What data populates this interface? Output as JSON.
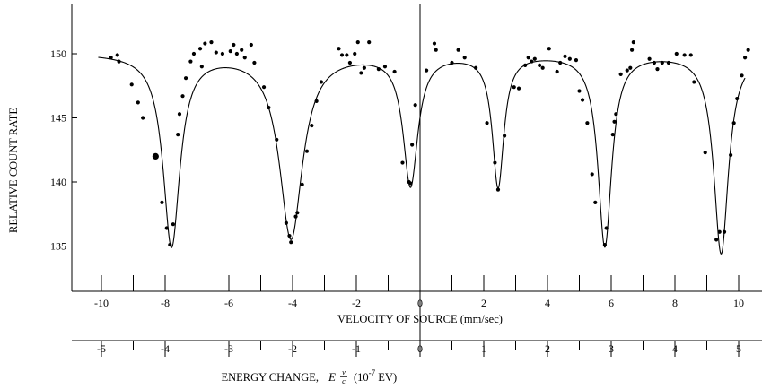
{
  "chart_data": {
    "type": "scatter",
    "title": "",
    "ylabel": "RELATIVE COUNT RATE",
    "xlabel": "VELOCITY OF SOURCE (mm/sec)",
    "xlim": [
      -10.8,
      10.8
    ],
    "ylim": [
      130.5,
      154.5
    ],
    "yticks": [
      "135",
      "140",
      "145",
      "150"
    ],
    "xticks": [
      "-10",
      "-8",
      "-6",
      "-4",
      "-2",
      "0",
      "2",
      "4",
      "6",
      "8",
      "10"
    ],
    "grid": false,
    "energy_axis": {
      "label_prefix": "ENERGY CHANGE,",
      "formula_E": "E",
      "formula_num": "v",
      "formula_den": "c",
      "unit_base": "(10",
      "unit_exp": "-7",
      "unit_suffix": " EV)",
      "ticks": [
        "-5",
        "-4",
        "-3",
        "-2",
        "-1",
        "0",
        "1",
        "2",
        "3",
        "4",
        "5"
      ]
    },
    "series": [
      {
        "kind": "points",
        "values": [
          [
            -9.7,
            149.7
          ],
          [
            -9.5,
            149.9
          ],
          [
            -9.45,
            149.4
          ],
          [
            -9.05,
            147.6
          ],
          [
            -8.85,
            146.2
          ],
          [
            -8.7,
            145.0
          ],
          [
            -8.3,
            142.0
          ],
          [
            -8.1,
            138.4
          ],
          [
            -7.95,
            136.4
          ],
          [
            -7.85,
            135.1
          ],
          [
            -7.75,
            136.7
          ],
          [
            -7.6,
            143.7
          ],
          [
            -7.55,
            145.3
          ],
          [
            -7.45,
            146.7
          ],
          [
            -7.35,
            148.1
          ],
          [
            -7.2,
            149.4
          ],
          [
            -7.1,
            150.0
          ],
          [
            -6.9,
            150.4
          ],
          [
            -6.85,
            149.0
          ],
          [
            -6.75,
            150.8
          ],
          [
            -6.55,
            150.9
          ],
          [
            -6.4,
            150.1
          ],
          [
            -6.2,
            150.0
          ],
          [
            -5.95,
            150.2
          ],
          [
            -5.85,
            150.7
          ],
          [
            -5.75,
            150.0
          ],
          [
            -5.6,
            150.3
          ],
          [
            -5.5,
            149.7
          ],
          [
            -5.3,
            150.7
          ],
          [
            -5.2,
            149.3
          ],
          [
            -4.9,
            147.4
          ],
          [
            -4.75,
            145.8
          ],
          [
            -4.5,
            143.3
          ],
          [
            -4.2,
            136.8
          ],
          [
            -4.1,
            135.8
          ],
          [
            -4.05,
            135.3
          ],
          [
            -3.9,
            137.3
          ],
          [
            -3.85,
            137.6
          ],
          [
            -3.7,
            139.8
          ],
          [
            -3.55,
            142.4
          ],
          [
            -3.4,
            144.4
          ],
          [
            -3.25,
            146.3
          ],
          [
            -3.1,
            147.8
          ],
          [
            -2.55,
            150.4
          ],
          [
            -2.45,
            149.9
          ],
          [
            -2.3,
            149.9
          ],
          [
            -2.2,
            149.3
          ],
          [
            -2.05,
            150.0
          ],
          [
            -1.95,
            150.9
          ],
          [
            -1.85,
            148.5
          ],
          [
            -1.75,
            148.9
          ],
          [
            -1.6,
            150.9
          ],
          [
            -1.3,
            148.8
          ],
          [
            -1.1,
            149.0
          ],
          [
            -0.8,
            148.6
          ],
          [
            -0.55,
            141.5
          ],
          [
            -0.35,
            140.0
          ],
          [
            -0.3,
            139.9
          ],
          [
            -0.25,
            142.9
          ],
          [
            -0.15,
            146.0
          ],
          [
            0.2,
            148.7
          ],
          [
            0.45,
            150.8
          ],
          [
            0.5,
            150.3
          ],
          [
            1.0,
            149.3
          ],
          [
            1.2,
            150.3
          ],
          [
            1.4,
            149.7
          ],
          [
            1.75,
            148.9
          ],
          [
            2.1,
            144.6
          ],
          [
            2.35,
            141.5
          ],
          [
            2.45,
            139.4
          ],
          [
            2.65,
            143.6
          ],
          [
            2.95,
            147.4
          ],
          [
            3.1,
            147.3
          ],
          [
            3.3,
            149.1
          ],
          [
            3.4,
            149.7
          ],
          [
            3.5,
            149.4
          ],
          [
            3.6,
            149.6
          ],
          [
            3.75,
            149.1
          ],
          [
            3.85,
            148.9
          ],
          [
            4.05,
            150.4
          ],
          [
            4.3,
            148.6
          ],
          [
            4.4,
            149.3
          ],
          [
            4.55,
            149.8
          ],
          [
            4.7,
            149.6
          ],
          [
            4.9,
            149.5
          ],
          [
            5.0,
            147.1
          ],
          [
            5.1,
            146.4
          ],
          [
            5.25,
            144.6
          ],
          [
            5.4,
            140.6
          ],
          [
            5.5,
            138.4
          ],
          [
            5.8,
            135.1
          ],
          [
            5.85,
            136.4
          ],
          [
            6.05,
            143.7
          ],
          [
            6.1,
            144.7
          ],
          [
            6.15,
            145.3
          ],
          [
            6.3,
            148.4
          ],
          [
            6.5,
            148.7
          ],
          [
            6.6,
            148.9
          ],
          [
            6.65,
            150.3
          ],
          [
            6.7,
            150.9
          ],
          [
            7.2,
            149.6
          ],
          [
            7.35,
            149.3
          ],
          [
            7.45,
            148.8
          ],
          [
            7.6,
            149.3
          ],
          [
            7.8,
            149.3
          ],
          [
            8.05,
            150.0
          ],
          [
            8.3,
            149.9
          ],
          [
            8.5,
            149.9
          ],
          [
            8.6,
            147.8
          ],
          [
            8.95,
            142.3
          ],
          [
            9.3,
            135.5
          ],
          [
            9.4,
            136.1
          ],
          [
            9.55,
            136.1
          ],
          [
            9.75,
            142.1
          ],
          [
            9.85,
            144.6
          ],
          [
            9.95,
            146.5
          ],
          [
            10.1,
            148.3
          ],
          [
            10.2,
            149.7
          ],
          [
            10.3,
            150.3
          ]
        ]
      },
      {
        "kind": "fit_curve",
        "baseline": 150.1,
        "dips": [
          {
            "center": -7.8,
            "depth": 15.0,
            "width": 0.32
          },
          {
            "center": -4.05,
            "depth": 14.4,
            "width": 0.44
          },
          {
            "center": -0.3,
            "depth": 10.2,
            "width": 0.28
          },
          {
            "center": 2.45,
            "depth": 10.3,
            "width": 0.22
          },
          {
            "center": 5.8,
            "depth": 15.0,
            "width": 0.26
          },
          {
            "center": 9.45,
            "depth": 15.6,
            "width": 0.28
          }
        ]
      }
    ],
    "highlight_point": [
      -8.3,
      142.0
    ]
  }
}
